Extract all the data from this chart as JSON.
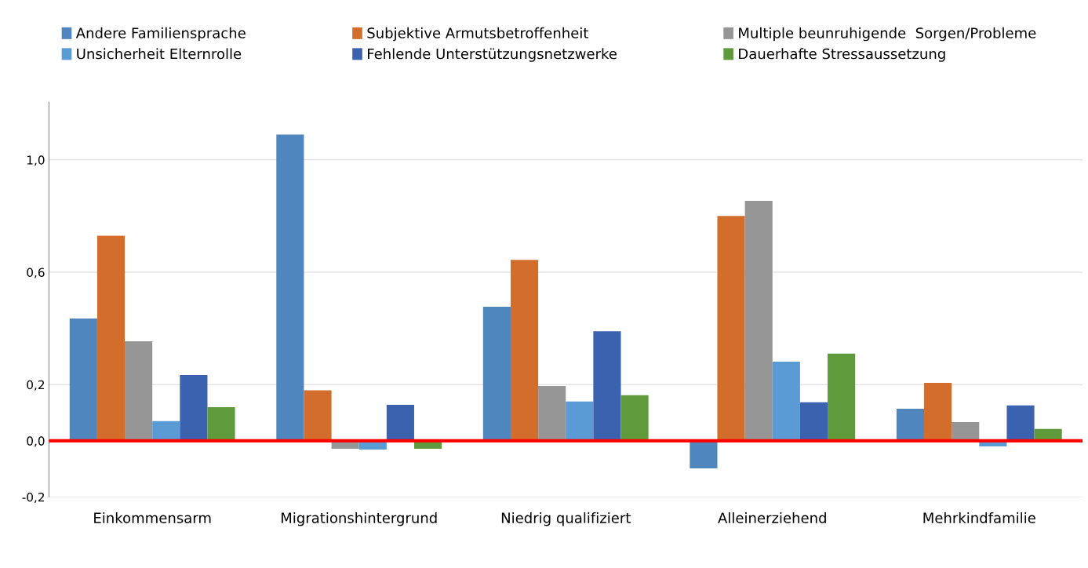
{
  "chart_data": {
    "type": "bar",
    "categories": [
      "Einkommensarm",
      "Migrationshintergrund",
      "Niedrig qualifiziert",
      "Alleinerziehend",
      "Mehrkindfamilie"
    ],
    "series": [
      {
        "name": "Andere Familiensprache",
        "color": "#4f86bd",
        "values": [
          0.435,
          1.09,
          0.477,
          -0.098,
          0.114
        ]
      },
      {
        "name": "Subjektive Armutsbetroffenheit",
        "color": "#d36d2b",
        "values": [
          0.73,
          0.18,
          0.644,
          0.8,
          0.206
        ]
      },
      {
        "name": "Multiple beunruhigende  Sorgen/Probleme",
        "color": "#969696",
        "values": [
          0.354,
          -0.028,
          0.195,
          0.854,
          0.067
        ]
      },
      {
        "name": "Unsicherheit Elternrolle",
        "color": "#5b9bd5",
        "values": [
          0.07,
          -0.031,
          0.14,
          0.282,
          -0.02
        ]
      },
      {
        "name": "Fehlende Unterstützungsnetzwerke",
        "color": "#3a62ae",
        "values": [
          0.234,
          0.128,
          0.39,
          0.137,
          0.126
        ]
      },
      {
        "name": "Dauerhafte Stressaussetzung",
        "color": "#5f9b3d",
        "values": [
          0.12,
          -0.028,
          0.162,
          0.31,
          0.042
        ]
      }
    ],
    "ylim": [
      -0.2,
      1.205
    ],
    "yticks": [
      {
        "value": -0.2,
        "label": "-0,2"
      },
      {
        "value": 0.0,
        "label": "0,0"
      },
      {
        "value": 0.2,
        "label": "0,2"
      },
      {
        "value": 0.6,
        "label": "0,6"
      },
      {
        "value": 1.0,
        "label": "1,0"
      }
    ],
    "ref_lines": [
      {
        "axis": "y",
        "value": 0.0,
        "label": null,
        "color": "#ff0000",
        "line_style": "solid"
      }
    ],
    "grid": "y",
    "legend": "top"
  }
}
